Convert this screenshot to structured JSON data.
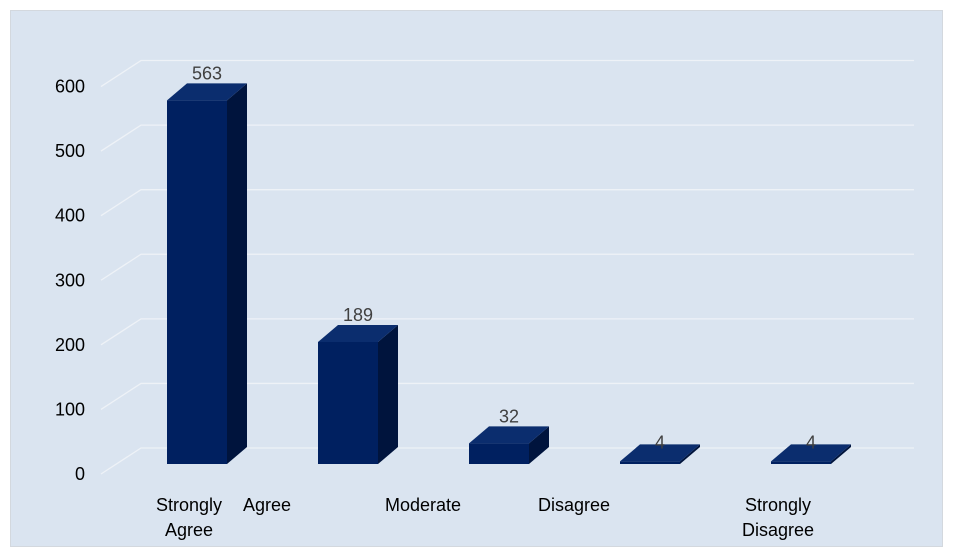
{
  "chart_data": {
    "type": "bar",
    "style": "3d-column",
    "categories": [
      "Strongly Agree",
      "Agree",
      "Moderate",
      "Disagree",
      "Strongly Disagree"
    ],
    "values": [
      563,
      189,
      32,
      4,
      4
    ],
    "data_labels": [
      "563",
      "189",
      "32",
      "4",
      "4"
    ],
    "ylim": [
      0,
      600
    ],
    "yticks": [
      0,
      100,
      200,
      300,
      400,
      500,
      600
    ],
    "ytick_labels": [
      "0",
      "100",
      "200",
      "300",
      "400",
      "500",
      "600"
    ],
    "grid": true,
    "legend": "none",
    "title": "",
    "xlabel": "",
    "ylabel": ""
  },
  "colors": {
    "background": "#dae4f0",
    "bar_front": "#002060",
    "bar_top": "#0b2d6e",
    "bar_side": "#00143d",
    "grid": "#eef2f7"
  }
}
